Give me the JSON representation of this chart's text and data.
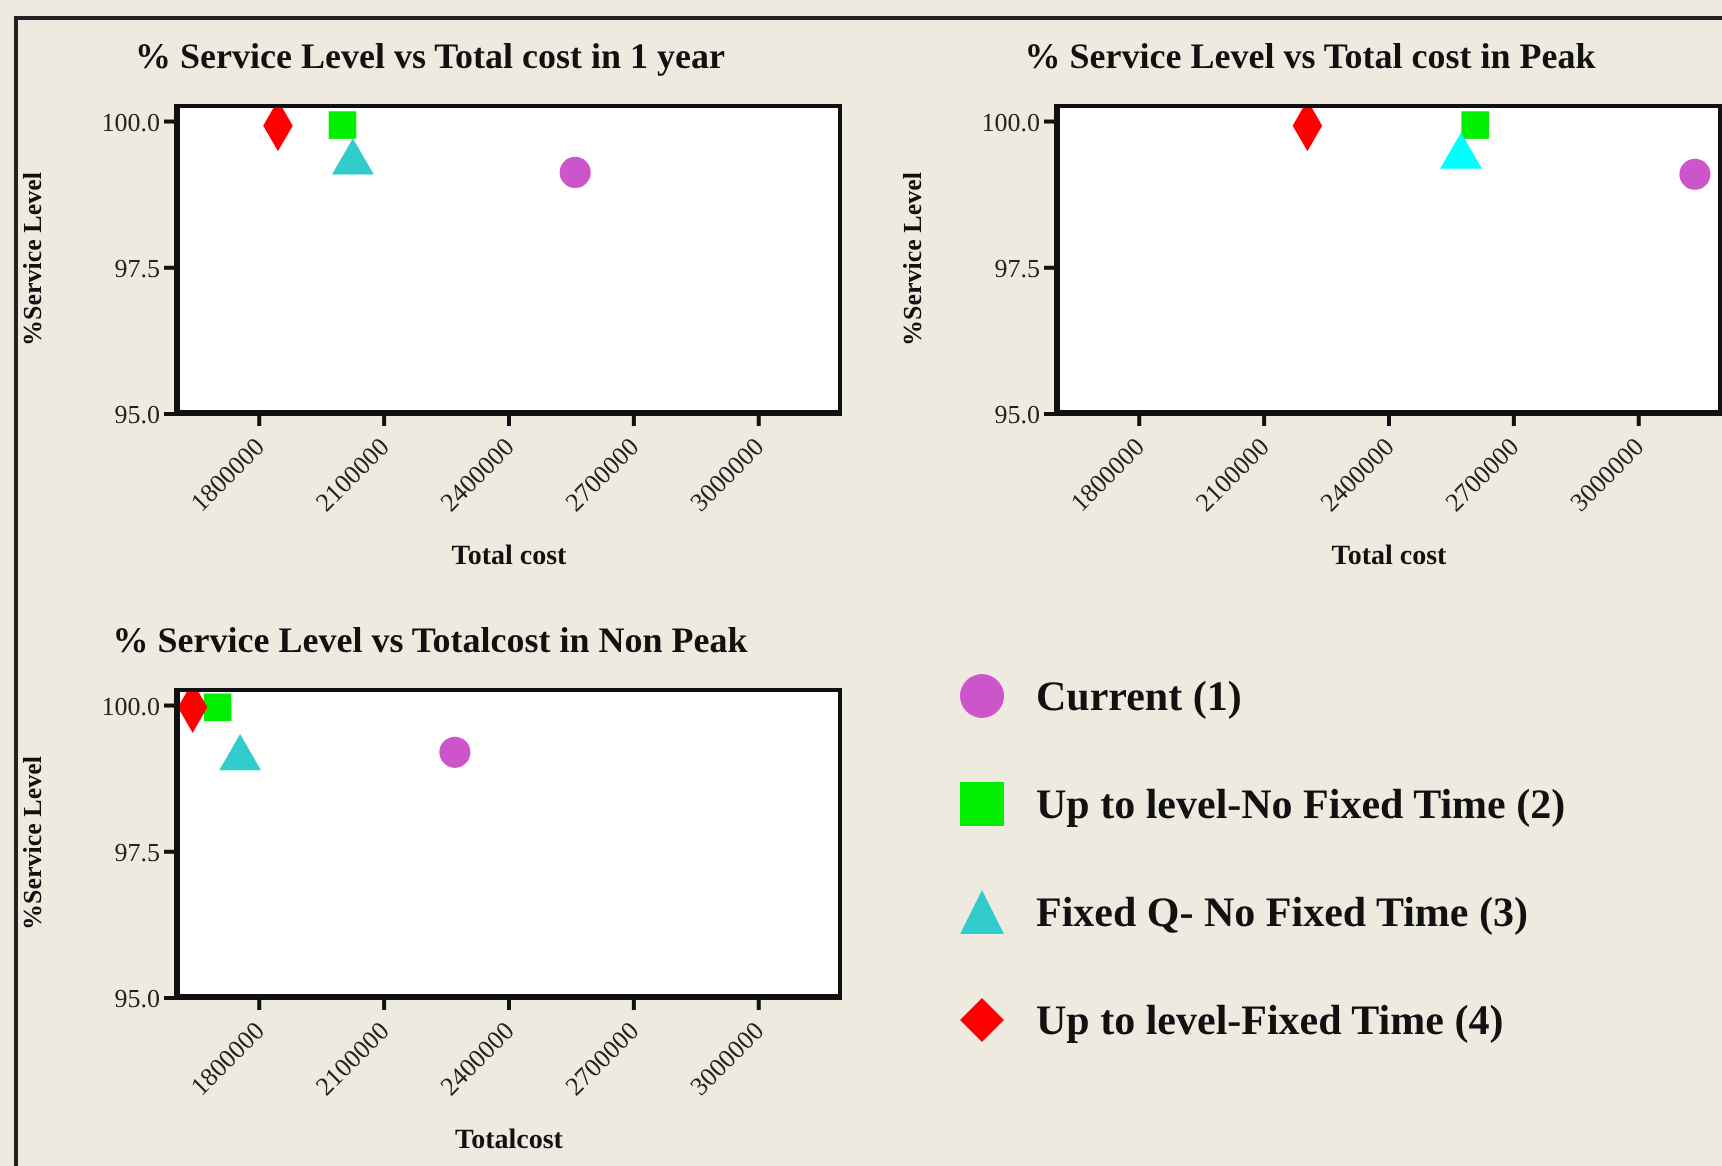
{
  "chart_data": [
    {
      "type": "scatter",
      "title": "% Service Level vs Total cost in 1 year",
      "xlabel": "Total cost",
      "ylabel": "%Service Level",
      "xlim": [
        1600000,
        3200000
      ],
      "xticks": [
        1800000,
        2100000,
        2400000,
        2700000,
        3000000
      ],
      "ylim": [
        95,
        100.3
      ],
      "yticks": [
        {
          "value": 95,
          "label": "95.0"
        },
        {
          "value": 97.5,
          "label": "97.5"
        },
        {
          "value": 100,
          "label": "100.0"
        }
      ],
      "legend": false,
      "series": [
        {
          "color": "#cc55cc",
          "marker": "circle",
          "x": [
            2559000
          ],
          "values": [
            99.13
          ]
        },
        {
          "color": "#00ee00",
          "marker": "square",
          "x": [
            2000000
          ],
          "values": [
            99.94
          ]
        },
        {
          "color": "#33cccc",
          "marker": "triangle",
          "x": [
            2025000
          ],
          "values": [
            99.3
          ]
        },
        {
          "color": "#ff0000",
          "marker": "diamond",
          "x": [
            1845000
          ],
          "values": [
            99.93
          ]
        }
      ]
    },
    {
      "type": "scatter",
      "title": "% Service Level vs Total cost in Peak",
      "xlabel": "Total cost",
      "ylabel": "%Service Level",
      "xlim": [
        1600000,
        3200000
      ],
      "xticks": [
        1800000,
        2100000,
        2400000,
        2700000,
        3000000
      ],
      "ylim": [
        95,
        100.3
      ],
      "yticks": [
        {
          "value": 95,
          "label": "95.0"
        },
        {
          "value": 97.5,
          "label": "97.5"
        },
        {
          "value": 100,
          "label": "100.0"
        }
      ],
      "legend": false,
      "series": [
        {
          "color": "#cc55cc",
          "marker": "circle",
          "x": [
            3135000
          ],
          "values": [
            99.1
          ]
        },
        {
          "color": "#00ee00",
          "marker": "square",
          "x": [
            2607000
          ],
          "values": [
            99.94
          ]
        },
        {
          "color": "#00ffff",
          "marker": "triangle",
          "x": [
            2573000
          ],
          "values": [
            99.4
          ]
        },
        {
          "color": "#ff0000",
          "marker": "diamond",
          "x": [
            2204000
          ],
          "values": [
            99.93
          ]
        }
      ]
    },
    {
      "type": "scatter",
      "title": "% Service Level vs Totalcost in Non Peak",
      "xlabel": "Totalcost",
      "ylabel": "%Service Level",
      "xlim": [
        1600000,
        3200000
      ],
      "xticks": [
        1800000,
        2100000,
        2400000,
        2700000,
        3000000
      ],
      "ylim": [
        95,
        100.3
      ],
      "yticks": [
        {
          "value": 95,
          "label": "95.0"
        },
        {
          "value": 97.5,
          "label": "97.5"
        },
        {
          "value": 100,
          "label": "100.0"
        }
      ],
      "legend": "right",
      "series": [
        {
          "name": "Current (1)",
          "color": "#cc55cc",
          "marker": "circle",
          "x": [
            2270000
          ],
          "values": [
            99.2
          ]
        },
        {
          "name": "Up to level-No Fixed Time (2)",
          "color": "#00ee00",
          "marker": "square",
          "x": [
            1700000
          ],
          "values": [
            99.97
          ]
        },
        {
          "name": "Fixed Q- No Fixed Time (3)",
          "color": "#33cccc",
          "marker": "triangle",
          "x": [
            1754000
          ],
          "values": [
            99.1
          ]
        },
        {
          "name": "Up to level-Fixed Time (4)",
          "color": "#ff0000",
          "marker": "diamond",
          "x": [
            1640000
          ],
          "values": [
            99.97
          ]
        }
      ]
    }
  ]
}
